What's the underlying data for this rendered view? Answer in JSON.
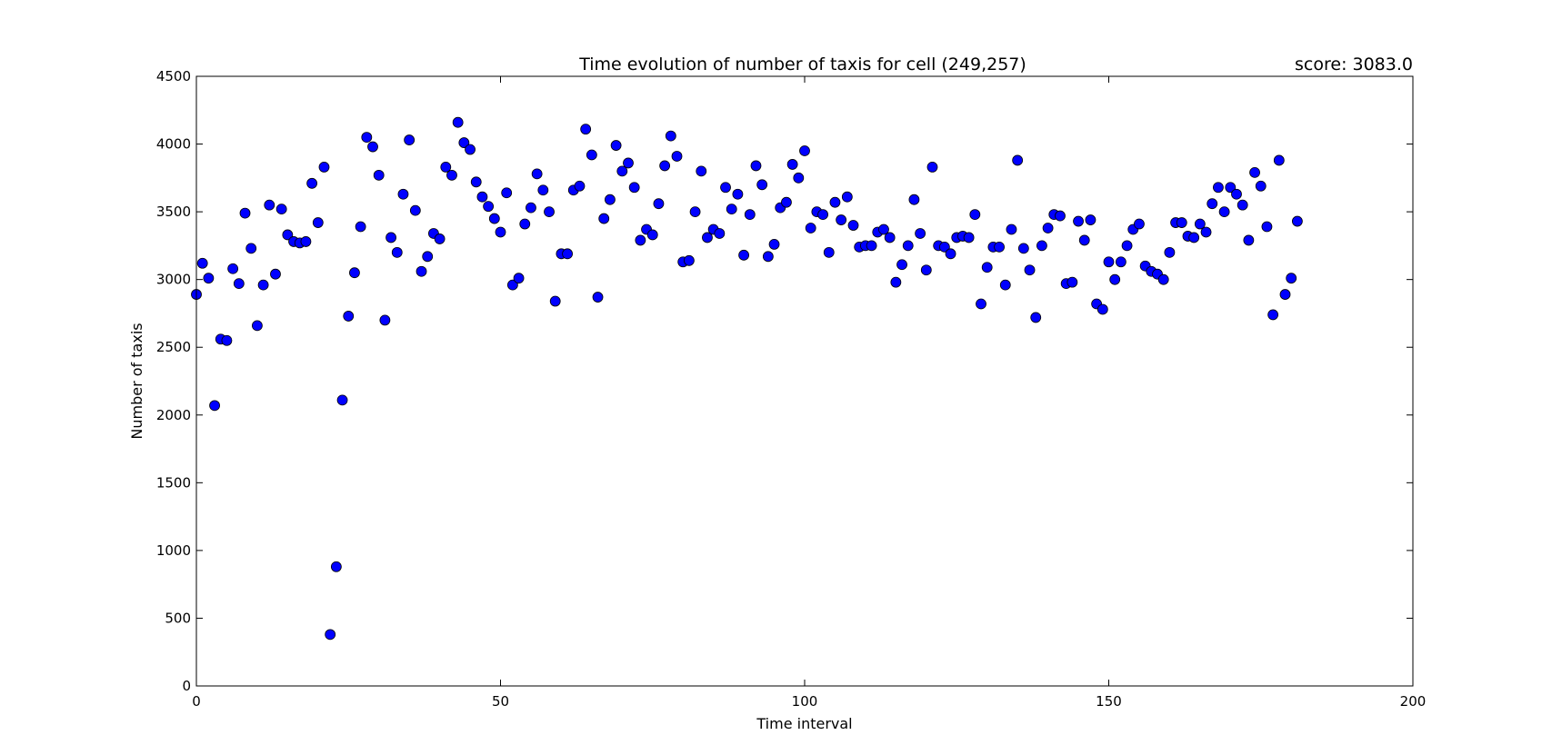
{
  "chart_data": {
    "type": "scatter",
    "title": "Time evolution of number of taxis for cell (249,257)",
    "score_label": "score: 3083.0",
    "xlabel": "Time interval",
    "ylabel": "Number of taxis",
    "xlim": [
      0,
      200
    ],
    "ylim": [
      0,
      4500
    ],
    "xticks": [
      0,
      50,
      100,
      150,
      200
    ],
    "yticks": [
      0,
      500,
      1000,
      1500,
      2000,
      2500,
      3000,
      3500,
      4000,
      4500
    ],
    "grid": false,
    "marker_color": "#0000ff",
    "marker_edge_color": "#000000",
    "series": [
      {
        "x": [
          0,
          1,
          2,
          3,
          4,
          5,
          6,
          7,
          8,
          9,
          10,
          11,
          12,
          13,
          14,
          15,
          16,
          17,
          18,
          19,
          20,
          21,
          22,
          23,
          24,
          25,
          26,
          27,
          28,
          29,
          30,
          31,
          32,
          33,
          34,
          35,
          36,
          37,
          38,
          39,
          40,
          41,
          42,
          43,
          44,
          45,
          46,
          47,
          48,
          49,
          50,
          51,
          52,
          53,
          54,
          55,
          56,
          57,
          58,
          59,
          60,
          61,
          62,
          63,
          64,
          65,
          66,
          67,
          68,
          69,
          70,
          71,
          72,
          73,
          74,
          75,
          76,
          77,
          78,
          79,
          80,
          81,
          82,
          83,
          84,
          85,
          86,
          87,
          88,
          89,
          90,
          91,
          92,
          93,
          94,
          95,
          96,
          97,
          98,
          99,
          100,
          101,
          102,
          103,
          104,
          105,
          106,
          107,
          108,
          109,
          110,
          111,
          112,
          113,
          114,
          115,
          116,
          117,
          118,
          119,
          120,
          121,
          122,
          123,
          124,
          125,
          126,
          127,
          128,
          129,
          130,
          131,
          132,
          133,
          134,
          135,
          136,
          137,
          138,
          139,
          140,
          141,
          142,
          143,
          144,
          145,
          146,
          147,
          148,
          149,
          150,
          151,
          152,
          153,
          154,
          155,
          156,
          157,
          158,
          159,
          160,
          161,
          162,
          163,
          164,
          165,
          166,
          167,
          168,
          169,
          170,
          171,
          172,
          173,
          174,
          175,
          176,
          177,
          178,
          179,
          180,
          181
        ],
        "y": [
          2890,
          3120,
          3010,
          2070,
          2560,
          2550,
          3080,
          2970,
          3490,
          3230,
          2660,
          2960,
          3550,
          3040,
          3520,
          3330,
          3280,
          3270,
          3280,
          3710,
          3420,
          3830,
          380,
          880,
          2110,
          2730,
          3050,
          3390,
          4050,
          3980,
          3770,
          2700,
          3310,
          3200,
          3630,
          4030,
          3510,
          3060,
          3170,
          3340,
          3300,
          3830,
          3770,
          4160,
          4010,
          3960,
          3720,
          3610,
          3540,
          3450,
          3350,
          3640,
          2960,
          3010,
          3410,
          3530,
          3780,
          3660,
          3500,
          2840,
          3190,
          3190,
          3660,
          3690,
          4110,
          3920,
          2870,
          3450,
          3590,
          3990,
          3800,
          3860,
          3680,
          3290,
          3370,
          3330,
          3560,
          3840,
          4060,
          3910,
          3130,
          3140,
          3500,
          3800,
          3310,
          3370,
          3340,
          3680,
          3520,
          3630,
          3180,
          3480,
          3840,
          3700,
          3170,
          3260,
          3530,
          3570,
          3850,
          3750,
          3950,
          3380,
          3500,
          3480,
          3200,
          3570,
          3440,
          3610,
          3400,
          3240,
          3250,
          3250,
          3350,
          3370,
          3310,
          2980,
          3110,
          3250,
          3590,
          3340,
          3070,
          3830,
          3250,
          3240,
          3190,
          3310,
          3320,
          3310,
          3480,
          2820,
          3090,
          3240,
          3240,
          2960,
          3370,
          3880,
          3230,
          3070,
          2720,
          3250,
          3380,
          3480,
          3470,
          2970,
          2980,
          3430,
          3290,
          3440,
          2820,
          2780,
          3130,
          3000,
          3130,
          3250,
          3370,
          3410,
          3100,
          3060,
          3040,
          3000,
          3200,
          3420,
          3420,
          3320,
          3310,
          3410,
          3350,
          3560,
          3680,
          3500,
          3680,
          3630,
          3550,
          3290,
          3790,
          3690,
          3390,
          2740,
          3880,
          2890,
          3010,
          3430
        ]
      }
    ]
  }
}
